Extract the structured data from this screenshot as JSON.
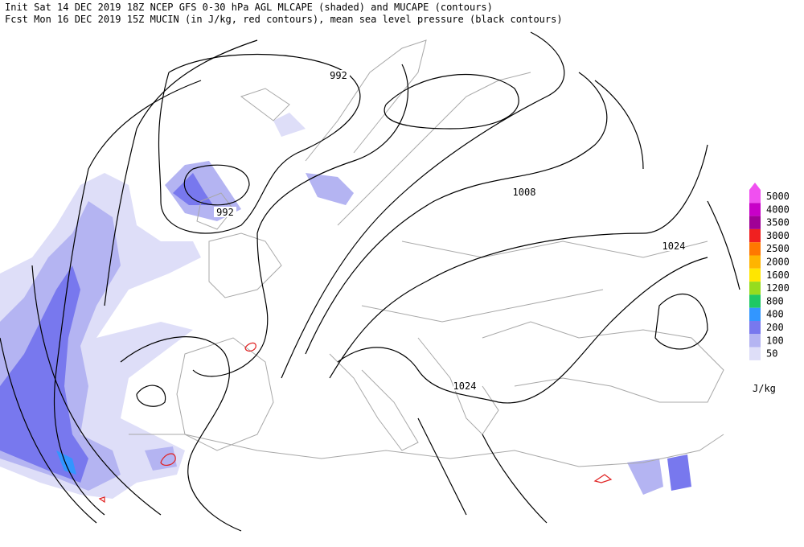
{
  "header": {
    "line1": "Init  Sat 14 DEC 2019 18Z  NCEP GFS 0-30 hPa AGL MLCAPE (shaded) and MUCAPE (contours)",
    "line2": "Fcst Mon 16 DEC 2019 15Z  MUCIN (in J/kg, red contours), mean sea level pressure (black contours)"
  },
  "contour_labels": [
    "992",
    "992",
    "1008",
    "1024",
    "1024"
  ],
  "legend": {
    "unit": "J/kg",
    "items": [
      {
        "label": "5000",
        "color": "#f050f0"
      },
      {
        "label": "4000",
        "color": "#c800c8"
      },
      {
        "label": "3500",
        "color": "#a00096"
      },
      {
        "label": "3000",
        "color": "#f02020"
      },
      {
        "label": "2500",
        "color": "#ff7800"
      },
      {
        "label": "2000",
        "color": "#ffb400"
      },
      {
        "label": "1600",
        "color": "#ffe600"
      },
      {
        "label": "1200",
        "color": "#96dc1e"
      },
      {
        "label": "800",
        "color": "#1ec864"
      },
      {
        "label": "400",
        "color": "#3296ff"
      },
      {
        "label": "200",
        "color": "#7878ee"
      },
      {
        "label": "100",
        "color": "#b4b4f2"
      },
      {
        "label": "50",
        "color": "#dedef8"
      }
    ]
  }
}
